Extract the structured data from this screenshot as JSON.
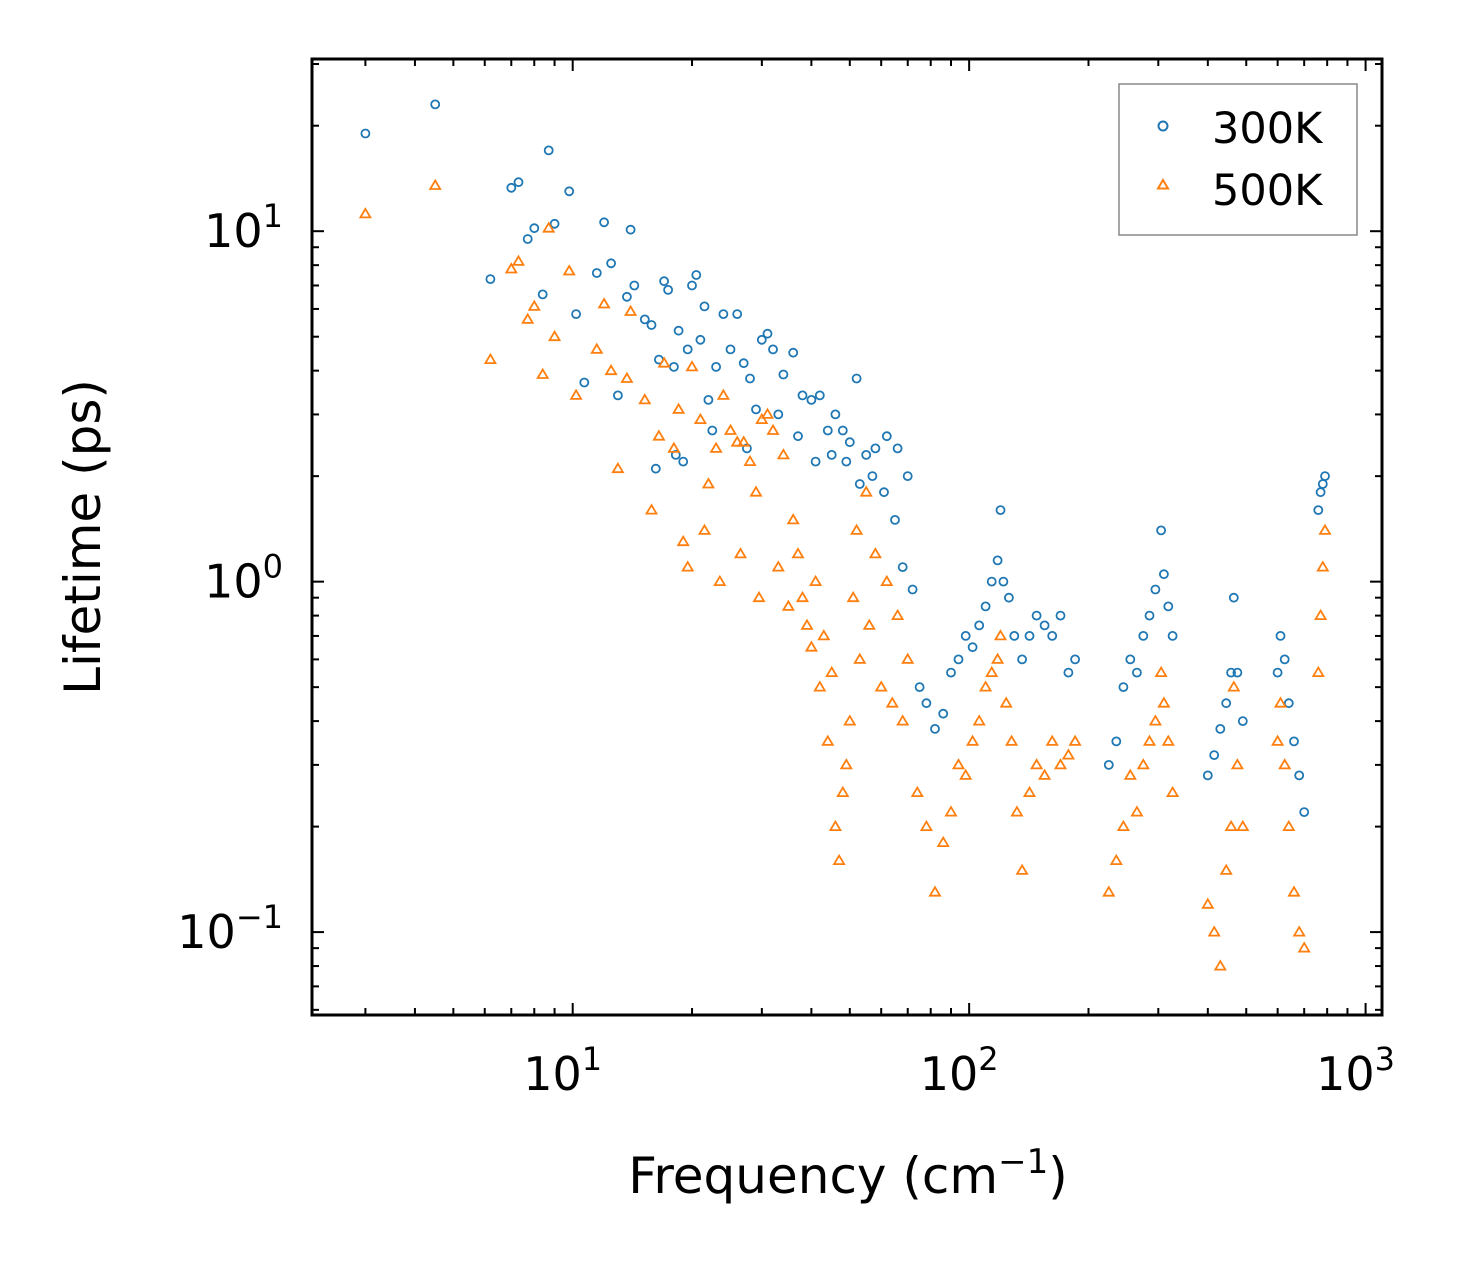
{
  "chart_data": {
    "type": "scatter",
    "xscale": "log",
    "yscale": "log",
    "xlim": [
      2.2,
      1100
    ],
    "ylim": [
      0.058,
      31
    ],
    "xlabel": "Frequency (cm",
    "xlabel_unit_exponent": "−1",
    "xlabel_close": ")",
    "ylabel": "Lifetime (ps)",
    "x_ticks": [
      {
        "value": 10,
        "base": "10",
        "exp": "1"
      },
      {
        "value": 100,
        "base": "10",
        "exp": "2"
      },
      {
        "value": 1000,
        "base": "10",
        "exp": "3"
      }
    ],
    "y_ticks": [
      {
        "value": 0.1,
        "base": "10",
        "exp": "−1"
      },
      {
        "value": 1,
        "base": "10",
        "exp": "0"
      },
      {
        "value": 10,
        "base": "10",
        "exp": "1"
      }
    ],
    "legend_position": "top-right",
    "series": [
      {
        "name": "300K",
        "marker": "circle",
        "color": "#1f77b4",
        "points": [
          [
            3.0,
            19.0
          ],
          [
            4.5,
            23.0
          ],
          [
            6.2,
            7.3
          ],
          [
            7.0,
            13.3
          ],
          [
            7.3,
            13.8
          ],
          [
            7.7,
            9.5
          ],
          [
            8.0,
            10.2
          ],
          [
            8.7,
            17.0
          ],
          [
            9.0,
            10.5
          ],
          [
            8.4,
            6.6
          ],
          [
            9.8,
            13.0
          ],
          [
            10.2,
            5.8
          ],
          [
            10.7,
            3.7
          ],
          [
            11.5,
            7.6
          ],
          [
            12.0,
            10.6
          ],
          [
            12.5,
            8.1
          ],
          [
            13.0,
            3.4
          ],
          [
            14.0,
            10.1
          ],
          [
            13.7,
            6.5
          ],
          [
            14.3,
            7.0
          ],
          [
            15.2,
            5.6
          ],
          [
            15.8,
            5.4
          ],
          [
            16.5,
            4.3
          ],
          [
            17.0,
            7.2
          ],
          [
            17.4,
            6.8
          ],
          [
            18.0,
            4.1
          ],
          [
            18.5,
            5.2
          ],
          [
            19.0,
            2.2
          ],
          [
            19.5,
            4.6
          ],
          [
            20.0,
            7.0
          ],
          [
            20.5,
            7.5
          ],
          [
            21.0,
            4.9
          ],
          [
            21.5,
            6.1
          ],
          [
            22.0,
            3.3
          ],
          [
            23.0,
            4.1
          ],
          [
            24.0,
            5.8
          ],
          [
            25.0,
            4.6
          ],
          [
            26.0,
            5.8
          ],
          [
            27.0,
            4.2
          ],
          [
            28.0,
            3.8
          ],
          [
            29.0,
            3.1
          ],
          [
            30.0,
            4.9
          ],
          [
            31.0,
            5.1
          ],
          [
            32.0,
            4.6
          ],
          [
            34.0,
            3.9
          ],
          [
            36.0,
            4.5
          ],
          [
            38.0,
            3.4
          ],
          [
            40.0,
            3.3
          ],
          [
            42.0,
            3.4
          ],
          [
            44.0,
            2.7
          ],
          [
            46.0,
            3.0
          ],
          [
            48.0,
            2.7
          ],
          [
            50.0,
            2.5
          ],
          [
            52.0,
            3.8
          ],
          [
            55.0,
            2.3
          ],
          [
            58.0,
            2.4
          ],
          [
            62.0,
            2.6
          ],
          [
            66.0,
            2.4
          ],
          [
            70.0,
            2.0
          ],
          [
            18.2,
            2.3
          ],
          [
            16.2,
            2.1
          ],
          [
            22.5,
            2.7
          ],
          [
            27.5,
            2.4
          ],
          [
            33.0,
            3.0
          ],
          [
            37.0,
            2.6
          ],
          [
            41.0,
            2.2
          ],
          [
            45.0,
            2.3
          ],
          [
            49.0,
            2.2
          ],
          [
            53.0,
            1.9
          ],
          [
            57.0,
            2.0
          ],
          [
            61.0,
            1.8
          ],
          [
            65.0,
            1.5
          ],
          [
            68.0,
            1.1
          ],
          [
            72.0,
            0.95
          ],
          [
            75.0,
            0.5
          ],
          [
            78.0,
            0.45
          ],
          [
            82.0,
            0.38
          ],
          [
            86.0,
            0.42
          ],
          [
            90.0,
            0.55
          ],
          [
            94.0,
            0.6
          ],
          [
            98.0,
            0.7
          ],
          [
            102.0,
            0.65
          ],
          [
            106.0,
            0.75
          ],
          [
            110.0,
            0.85
          ],
          [
            114.0,
            1.0
          ],
          [
            118.0,
            1.15
          ],
          [
            120.0,
            1.6
          ],
          [
            122.0,
            1.0
          ],
          [
            126.0,
            0.9
          ],
          [
            130.0,
            0.7
          ],
          [
            136.0,
            0.6
          ],
          [
            142.0,
            0.7
          ],
          [
            148.0,
            0.8
          ],
          [
            155.0,
            0.75
          ],
          [
            162.0,
            0.7
          ],
          [
            170.0,
            0.8
          ],
          [
            178.0,
            0.55
          ],
          [
            185.0,
            0.6
          ],
          [
            225.0,
            0.3
          ],
          [
            235.0,
            0.35
          ],
          [
            245.0,
            0.5
          ],
          [
            255.0,
            0.6
          ],
          [
            265.0,
            0.55
          ],
          [
            275.0,
            0.7
          ],
          [
            285.0,
            0.8
          ],
          [
            295.0,
            0.95
          ],
          [
            305.0,
            1.4
          ],
          [
            310.0,
            1.05
          ],
          [
            318.0,
            0.85
          ],
          [
            326.0,
            0.7
          ],
          [
            400.0,
            0.28
          ],
          [
            415.0,
            0.32
          ],
          [
            430.0,
            0.38
          ],
          [
            445.0,
            0.45
          ],
          [
            458.0,
            0.55
          ],
          [
            465.0,
            0.9
          ],
          [
            475.0,
            0.55
          ],
          [
            490.0,
            0.4
          ],
          [
            600.0,
            0.55
          ],
          [
            610.0,
            0.7
          ],
          [
            625.0,
            0.6
          ],
          [
            640.0,
            0.45
          ],
          [
            660.0,
            0.35
          ],
          [
            680.0,
            0.28
          ],
          [
            700.0,
            0.22
          ],
          [
            760.0,
            1.6
          ],
          [
            770.0,
            1.8
          ],
          [
            780.0,
            1.9
          ],
          [
            790.0,
            2.0
          ]
        ]
      },
      {
        "name": "500K",
        "marker": "triangle",
        "color": "#ff7f0e",
        "points": [
          [
            3.0,
            11.2
          ],
          [
            4.5,
            13.5
          ],
          [
            6.2,
            4.3
          ],
          [
            7.0,
            7.8
          ],
          [
            7.3,
            8.2
          ],
          [
            7.7,
            5.6
          ],
          [
            8.0,
            6.1
          ],
          [
            8.7,
            10.2
          ],
          [
            9.0,
            5.0
          ],
          [
            8.4,
            3.9
          ],
          [
            9.8,
            7.7
          ],
          [
            10.2,
            3.4
          ],
          [
            11.5,
            4.6
          ],
          [
            12.0,
            6.2
          ],
          [
            12.5,
            4.0
          ],
          [
            13.0,
            2.1
          ],
          [
            14.0,
            5.9
          ],
          [
            13.7,
            3.8
          ],
          [
            15.2,
            3.3
          ],
          [
            15.8,
            1.6
          ],
          [
            16.5,
            2.6
          ],
          [
            17.0,
            4.2
          ],
          [
            18.0,
            2.4
          ],
          [
            18.5,
            3.1
          ],
          [
            19.0,
            1.3
          ],
          [
            20.0,
            4.1
          ],
          [
            21.0,
            2.9
          ],
          [
            22.0,
            1.9
          ],
          [
            23.0,
            2.4
          ],
          [
            24.0,
            3.4
          ],
          [
            25.0,
            2.7
          ],
          [
            26.0,
            2.5
          ],
          [
            27.0,
            2.5
          ],
          [
            28.0,
            2.2
          ],
          [
            29.0,
            1.8
          ],
          [
            30.0,
            2.9
          ],
          [
            31.0,
            3.0
          ],
          [
            32.0,
            2.7
          ],
          [
            34.0,
            2.3
          ],
          [
            36.0,
            1.5
          ],
          [
            38.0,
            0.9
          ],
          [
            40.0,
            0.65
          ],
          [
            42.0,
            0.5
          ],
          [
            44.0,
            0.35
          ],
          [
            46.0,
            0.2
          ],
          [
            48.0,
            0.25
          ],
          [
            50.0,
            0.4
          ],
          [
            52.0,
            1.4
          ],
          [
            55.0,
            1.8
          ],
          [
            58.0,
            1.2
          ],
          [
            62.0,
            1.0
          ],
          [
            66.0,
            0.8
          ],
          [
            70.0,
            0.6
          ],
          [
            19.5,
            1.1
          ],
          [
            21.5,
            1.4
          ],
          [
            23.5,
            1.0
          ],
          [
            26.5,
            1.2
          ],
          [
            29.5,
            0.9
          ],
          [
            33.0,
            1.1
          ],
          [
            35.0,
            0.85
          ],
          [
            37.0,
            1.2
          ],
          [
            39.0,
            0.75
          ],
          [
            41.0,
            1.0
          ],
          [
            43.0,
            0.7
          ],
          [
            45.0,
            0.55
          ],
          [
            47.0,
            0.16
          ],
          [
            49.0,
            0.3
          ],
          [
            51.0,
            0.9
          ],
          [
            53.0,
            0.6
          ],
          [
            56.0,
            0.75
          ],
          [
            60.0,
            0.5
          ],
          [
            64.0,
            0.45
          ],
          [
            68.0,
            0.4
          ],
          [
            74.0,
            0.25
          ],
          [
            78.0,
            0.2
          ],
          [
            82.0,
            0.13
          ],
          [
            86.0,
            0.18
          ],
          [
            90.0,
            0.22
          ],
          [
            94.0,
            0.3
          ],
          [
            98.0,
            0.28
          ],
          [
            102.0,
            0.35
          ],
          [
            106.0,
            0.4
          ],
          [
            110.0,
            0.5
          ],
          [
            114.0,
            0.55
          ],
          [
            118.0,
            0.6
          ],
          [
            120.0,
            0.7
          ],
          [
            124.0,
            0.45
          ],
          [
            128.0,
            0.35
          ],
          [
            132.0,
            0.22
          ],
          [
            136.0,
            0.15
          ],
          [
            142.0,
            0.25
          ],
          [
            148.0,
            0.3
          ],
          [
            155.0,
            0.28
          ],
          [
            162.0,
            0.35
          ],
          [
            170.0,
            0.3
          ],
          [
            178.0,
            0.32
          ],
          [
            185.0,
            0.35
          ],
          [
            225.0,
            0.13
          ],
          [
            235.0,
            0.16
          ],
          [
            245.0,
            0.2
          ],
          [
            255.0,
            0.28
          ],
          [
            265.0,
            0.22
          ],
          [
            275.0,
            0.3
          ],
          [
            285.0,
            0.35
          ],
          [
            295.0,
            0.4
          ],
          [
            305.0,
            0.55
          ],
          [
            310.0,
            0.45
          ],
          [
            318.0,
            0.35
          ],
          [
            326.0,
            0.25
          ],
          [
            400.0,
            0.12
          ],
          [
            415.0,
            0.1
          ],
          [
            430.0,
            0.08
          ],
          [
            445.0,
            0.15
          ],
          [
            458.0,
            0.2
          ],
          [
            465.0,
            0.5
          ],
          [
            475.0,
            0.3
          ],
          [
            490.0,
            0.2
          ],
          [
            600.0,
            0.35
          ],
          [
            610.0,
            0.45
          ],
          [
            625.0,
            0.3
          ],
          [
            640.0,
            0.2
          ],
          [
            660.0,
            0.13
          ],
          [
            680.0,
            0.1
          ],
          [
            700.0,
            0.09
          ],
          [
            760.0,
            0.55
          ],
          [
            770.0,
            0.8
          ],
          [
            780.0,
            1.1
          ],
          [
            790.0,
            1.4
          ]
        ]
      }
    ]
  }
}
